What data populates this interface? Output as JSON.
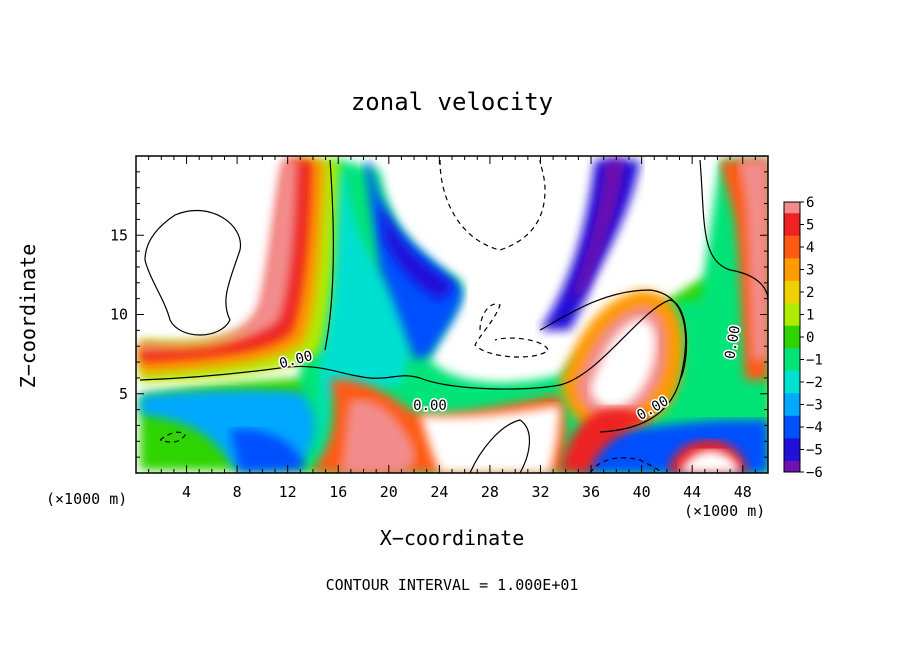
{
  "chart_data": {
    "type": "heatmap",
    "title": "zonal velocity",
    "xlabel": "X−coordinate",
    "ylabel": "Z−coordinate",
    "x_unit_label": "(×1000 m)",
    "x_unit_label_right": "(×1000 m)",
    "xlim": [
      0,
      50
    ],
    "ylim": [
      0,
      20
    ],
    "x_ticks": [
      "4",
      "8",
      "12",
      "16",
      "20",
      "24",
      "28",
      "32",
      "36",
      "40",
      "44",
      "48"
    ],
    "y_ticks": [
      "5",
      "10",
      "15"
    ],
    "colorbar": {
      "ticks": [
        "6",
        "5",
        "4",
        "3",
        "2",
        "1",
        "0",
        "−1",
        "−2",
        "−3",
        "−4",
        "−5",
        "−6"
      ],
      "range": [
        -6,
        6
      ]
    },
    "contour_labels": [
      "0.00",
      "0.00",
      "0.00",
      "0.00"
    ],
    "footer": "CONTOUR INTERVAL = 1.000E+01",
    "colors": {
      "6": "#f28c8c",
      "5": "#ee2222",
      "4": "#ff5a14",
      "3": "#ff9a00",
      "2": "#f0d000",
      "1": "#b0ec00",
      "0": "#2ed400",
      "-1": "#00e478",
      "-2": "#00e0d0",
      "-3": "#00a8ff",
      "-4": "#0050ff",
      "-5": "#2010d8",
      "-6": "#7010b0"
    }
  }
}
